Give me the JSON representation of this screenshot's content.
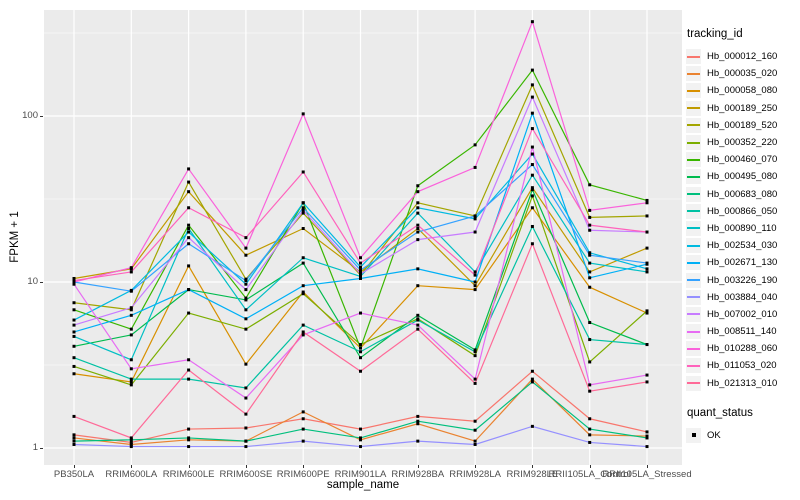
{
  "figure": {
    "y_axis_title": "FPKM + 1",
    "x_axis_title": "sample_name",
    "y_ticks": [
      "100",
      "10",
      "1"
    ],
    "legend": {
      "tracking_title": "tracking_id",
      "quant_title": "quant_status",
      "quant_items": [
        {
          "label": "OK",
          "marker": "black-square"
        }
      ]
    }
  },
  "chart_data": {
    "type": "line",
    "title": "",
    "xlabel": "sample_name",
    "ylabel": "FPKM + 1",
    "y_scale": "log10",
    "ylim": [
      1,
      437
    ],
    "y_major_ticks": [
      100,
      10,
      1
    ],
    "y_minor_gridlines": [
      3.1623,
      31.623,
      316.23
    ],
    "grid": true,
    "legend_position": "right",
    "panel_background": "#EBEBEB",
    "grid_color": "#FFFFFF",
    "marker": {
      "shape": "square",
      "color": "#000000",
      "meaning": "OK"
    },
    "categories": [
      "PB350LA",
      "RRIM600LA",
      "RRIM600LE",
      "RRIM600SE",
      "RRIM600PE",
      "RRIM901LA",
      "RRIM928BA",
      "RRIM928LA",
      "RRIM928LE",
      "RRII105LA_Control",
      "RRII105LA_Stressed"
    ],
    "series": [
      {
        "name": "Hb_000012_160",
        "color": "#F8766D",
        "values": [
          1.2,
          1.08,
          1.3,
          1.32,
          1.5,
          1.3,
          1.55,
          1.45,
          2.9,
          1.5,
          1.25
        ]
      },
      {
        "name": "Hb_000035_020",
        "color": "#EA8331",
        "values": [
          1.15,
          1.05,
          1.12,
          1.1,
          1.65,
          1.12,
          1.4,
          1.1,
          2.6,
          1.2,
          1.18
        ]
      },
      {
        "name": "Hb_000058_080",
        "color": "#D89000",
        "values": [
          2.8,
          2.5,
          12.5,
          3.2,
          8.7,
          4.0,
          9.5,
          9.0,
          28,
          9.3,
          6.5
        ]
      },
      {
        "name": "Hb_000189_250",
        "color": "#C09B00",
        "values": [
          10.5,
          12.0,
          35,
          14.5,
          21,
          11.5,
          21,
          9.5,
          37,
          11.5,
          16
        ]
      },
      {
        "name": "Hb_000189_520",
        "color": "#A3A500",
        "values": [
          7.5,
          6.8,
          40,
          10.4,
          26,
          11,
          30,
          25,
          154,
          24.5,
          25
        ]
      },
      {
        "name": "Hb_000352_220",
        "color": "#7CAE00",
        "values": [
          3.1,
          2.4,
          6.5,
          5.2,
          8.5,
          4.2,
          6.0,
          3.6,
          33,
          3.3,
          6.7
        ]
      },
      {
        "name": "Hb_000460_070",
        "color": "#39B600",
        "values": [
          6.8,
          5.2,
          22,
          8.0,
          30,
          4.0,
          38,
          67,
          189,
          38.5,
          31
        ]
      },
      {
        "name": "Hb_000495_080",
        "color": "#00BB4E",
        "values": [
          4.1,
          4.8,
          9.0,
          7.8,
          13,
          3.5,
          6.3,
          3.9,
          36,
          5.7,
          4.2
        ]
      },
      {
        "name": "Hb_000683_080",
        "color": "#00BF7D",
        "values": [
          1.1,
          1.12,
          1.15,
          1.1,
          1.3,
          1.15,
          1.45,
          1.28,
          2.5,
          1.3,
          1.15
        ]
      },
      {
        "name": "Hb_000866_050",
        "color": "#00C1A3",
        "values": [
          3.5,
          2.6,
          2.6,
          2.3,
          5.5,
          3.8,
          5.9,
          3.8,
          21.6,
          4.5,
          4.2
        ]
      },
      {
        "name": "Hb_000890_110",
        "color": "#00BFC4",
        "values": [
          4.7,
          3.4,
          21,
          6.8,
          14,
          10.8,
          26,
          11.5,
          44,
          13,
          11.5
        ]
      },
      {
        "name": "Hb_002534_030",
        "color": "#00BAE0",
        "values": [
          5.9,
          8.9,
          20,
          9.7,
          30,
          12.3,
          28,
          24,
          59,
          15,
          12
        ]
      },
      {
        "name": "Hb_002671_130",
        "color": "#00B0F6",
        "values": [
          5.0,
          6.3,
          9.0,
          6.0,
          9.5,
          10.5,
          12,
          10,
          104,
          10.6,
          12.8
        ]
      },
      {
        "name": "Hb_003226_190",
        "color": "#35A2FF",
        "values": [
          10.0,
          8.8,
          17,
          10.2,
          28,
          11.8,
          20,
          25,
          51,
          14.5,
          13
        ]
      },
      {
        "name": "Hb_003884_040",
        "color": "#9590FF",
        "values": [
          1.05,
          1.02,
          1.02,
          1.02,
          1.1,
          1.02,
          1.1,
          1.05,
          1.35,
          1.08,
          1.02
        ]
      },
      {
        "name": "Hb_007002_010",
        "color": "#C77CFF",
        "values": [
          5.5,
          7.0,
          18.5,
          9.0,
          27,
          11.2,
          18,
          20,
          130,
          20.5,
          20
        ]
      },
      {
        "name": "Hb_008511_140",
        "color": "#E76BF3",
        "values": [
          9.7,
          3.0,
          3.4,
          2.0,
          4.8,
          6.5,
          5.5,
          2.6,
          65,
          2.4,
          2.75
        ]
      },
      {
        "name": "Hb_010288_060",
        "color": "#FA62DB",
        "values": [
          10.0,
          12.2,
          48,
          16,
          103,
          14,
          35,
          49,
          370,
          27,
          30
        ]
      },
      {
        "name": "Hb_011053_020",
        "color": "#FF62BC",
        "values": [
          10.2,
          11.5,
          28,
          18.5,
          46,
          13,
          22,
          11,
          84,
          22,
          20
        ]
      },
      {
        "name": "Hb_021313_010",
        "color": "#FF6A98",
        "values": [
          1.55,
          1.15,
          2.95,
          1.6,
          5.0,
          2.9,
          5.2,
          2.45,
          17,
          2.2,
          2.5
        ]
      }
    ]
  }
}
